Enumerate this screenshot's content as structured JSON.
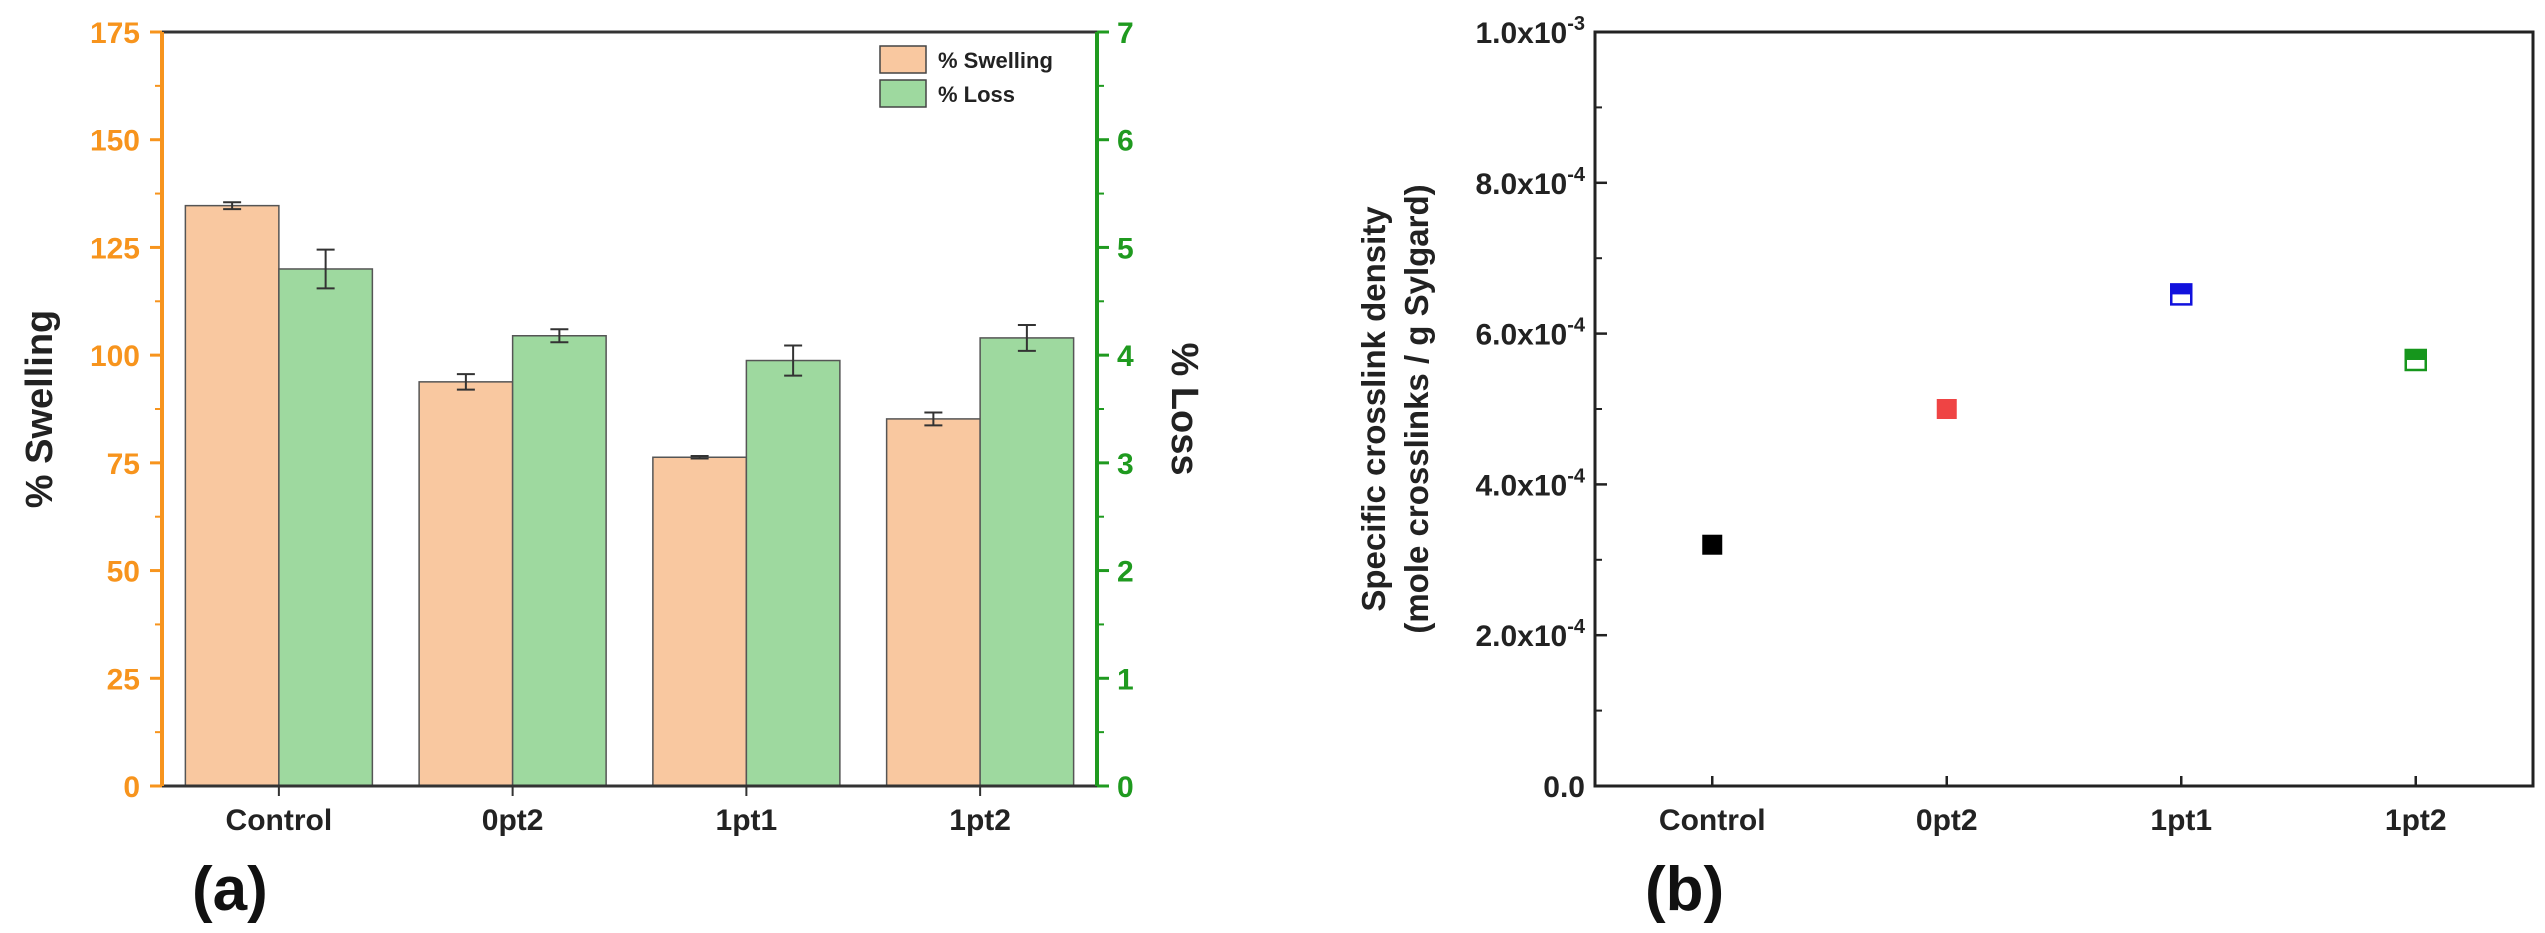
{
  "chart_data": [
    {
      "type": "bar",
      "panel_label": "(a)",
      "categories": [
        "Control",
        "0pt2",
        "1pt1",
        "1pt2"
      ],
      "series": [
        {
          "name": "% Swelling",
          "axis": "left",
          "color": "#f9c8a0",
          "values": [
            134.7,
            93.8,
            76.3,
            85.2
          ],
          "errors": [
            0.8,
            1.8,
            0.3,
            1.5
          ]
        },
        {
          "name": "% Loss",
          "axis": "right",
          "color": "#9ed99f",
          "values": [
            4.8,
            4.18,
            3.95,
            4.16
          ],
          "errors": [
            0.18,
            0.06,
            0.14,
            0.12
          ]
        }
      ],
      "ylabel": "% Swelling",
      "ylim": [
        0,
        175
      ],
      "yticks": [
        "0",
        "25",
        "50",
        "75",
        "100",
        "125",
        "150",
        "175"
      ],
      "y2label": "% Loss",
      "y2lim": [
        0,
        7
      ],
      "y2ticks": [
        "0",
        "1",
        "2",
        "3",
        "4",
        "5",
        "6",
        "7"
      ],
      "left_axis_color": "#f7941d",
      "right_axis_color": "#1f9a1f",
      "legend": {
        "position": "top-right",
        "entries": [
          "% Swelling",
          "% Loss"
        ]
      }
    },
    {
      "type": "scatter",
      "panel_label": "(b)",
      "categories": [
        "Control",
        "0pt2",
        "1pt1",
        "1pt2"
      ],
      "values": [
        0.00032,
        0.0005,
        0.000652,
        0.000565
      ],
      "colors": [
        "#000000",
        "#ef4444",
        "#1111dd",
        "#16961c"
      ],
      "marker_styles": [
        "filled",
        "filled",
        "half",
        "half"
      ],
      "ylabel_line1": "Specific crosslink density",
      "ylabel_line2": "(mole crosslinks / g Sylgard)",
      "ylim": [
        0,
        0.001
      ],
      "yticks": [
        {
          "value": 0,
          "mantissa": "0.0",
          "exp": ""
        },
        {
          "value": 0.0002,
          "mantissa": "2.0x10",
          "exp": "-4"
        },
        {
          "value": 0.0004,
          "mantissa": "4.0x10",
          "exp": "-4"
        },
        {
          "value": 0.0006,
          "mantissa": "6.0x10",
          "exp": "-4"
        },
        {
          "value": 0.0008,
          "mantissa": "8.0x10",
          "exp": "-4"
        },
        {
          "value": 0.001,
          "mantissa": "1.0x10",
          "exp": "-3"
        }
      ]
    }
  ]
}
